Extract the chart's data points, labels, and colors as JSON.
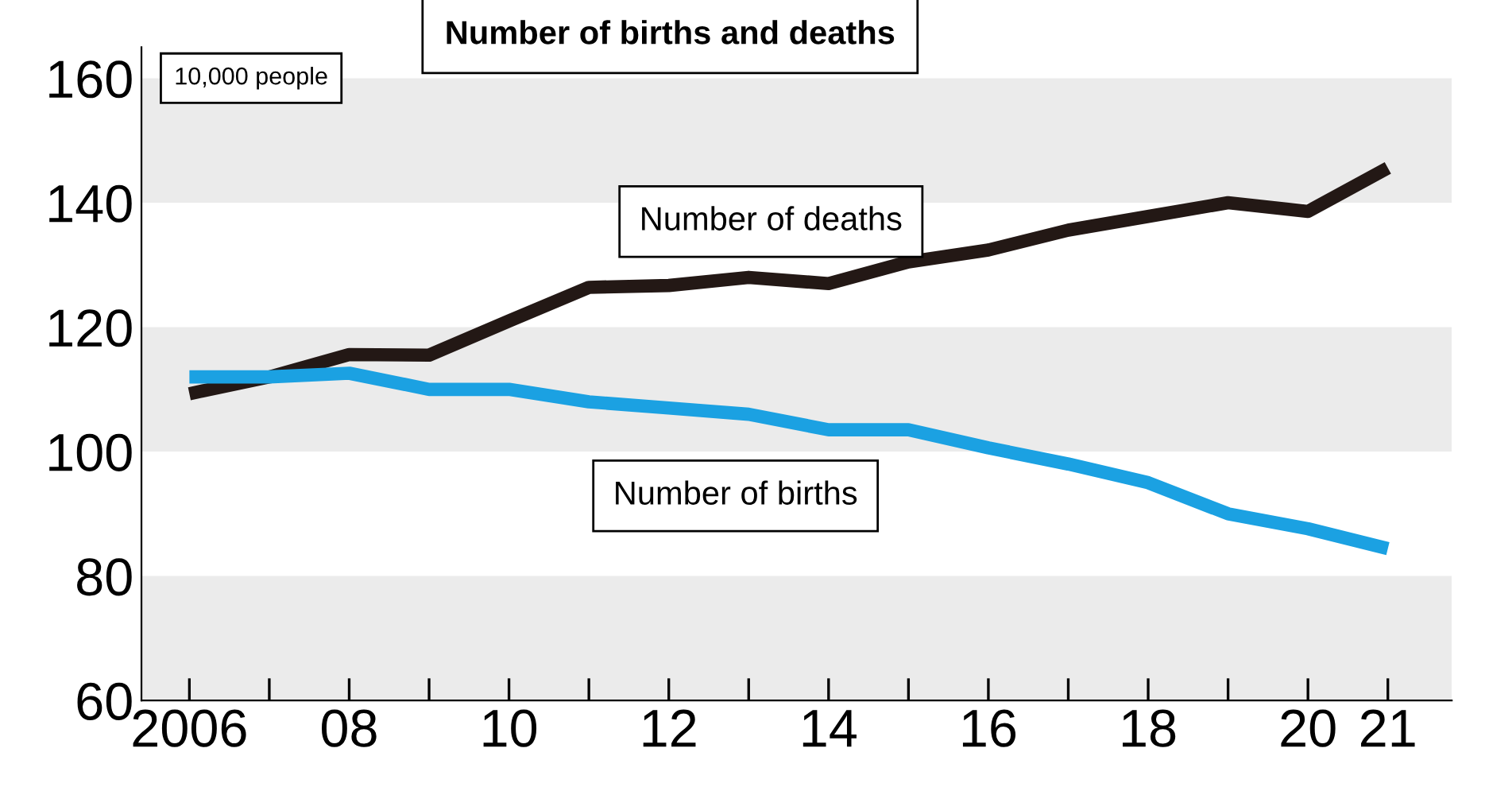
{
  "chart_data": {
    "type": "line",
    "title": "Number of births and deaths",
    "ylabel": "10,000 people",
    "x": [
      2006,
      2007,
      2008,
      2009,
      2010,
      2011,
      2012,
      2013,
      2014,
      2015,
      2016,
      2017,
      2018,
      2019,
      2020,
      2021
    ],
    "series": [
      {
        "name": "Number of deaths",
        "color": "#231815",
        "values": [
          109.3,
          112,
          115.6,
          115.5,
          121,
          126.4,
          126.7,
          128,
          127,
          130.5,
          132.4,
          135.6,
          137.8,
          140,
          138.6,
          145.6
        ]
      },
      {
        "name": "Number of births",
        "color": "#1ba1e2",
        "values": [
          112,
          112,
          112.6,
          110,
          110,
          108,
          107,
          106,
          103.5,
          103.5,
          100.6,
          98,
          95,
          90,
          87.6,
          84.4
        ]
      }
    ],
    "xlim": [
      2005.4,
      2021.8
    ],
    "xticks": [
      {
        "value": 2006,
        "label": "2006"
      },
      {
        "value": 2007,
        "label": null
      },
      {
        "value": 2008,
        "label": "08"
      },
      {
        "value": 2009,
        "label": null
      },
      {
        "value": 2010,
        "label": "10"
      },
      {
        "value": 2011,
        "label": null
      },
      {
        "value": 2012,
        "label": "12"
      },
      {
        "value": 2013,
        "label": null
      },
      {
        "value": 2014,
        "label": "14"
      },
      {
        "value": 2015,
        "label": null
      },
      {
        "value": 2016,
        "label": "16"
      },
      {
        "value": 2017,
        "label": null
      },
      {
        "value": 2018,
        "label": "18"
      },
      {
        "value": 2019,
        "label": null
      },
      {
        "value": 2020,
        "label": "20"
      },
      {
        "value": 2021,
        "label": "21"
      }
    ],
    "ylim": [
      60,
      165
    ],
    "yticks": [
      60,
      80,
      100,
      120,
      140,
      160
    ],
    "bands": [
      {
        "axis": "y",
        "from": 140,
        "to": 160,
        "color": "#ebebeb"
      },
      {
        "axis": "y",
        "from": 100,
        "to": 120,
        "color": "#ebebeb"
      },
      {
        "axis": "y",
        "from": 60,
        "to": 80,
        "color": "#ebebeb"
      }
    ],
    "grid": false,
    "legend": false,
    "marker": "none",
    "line_style": "solid"
  }
}
